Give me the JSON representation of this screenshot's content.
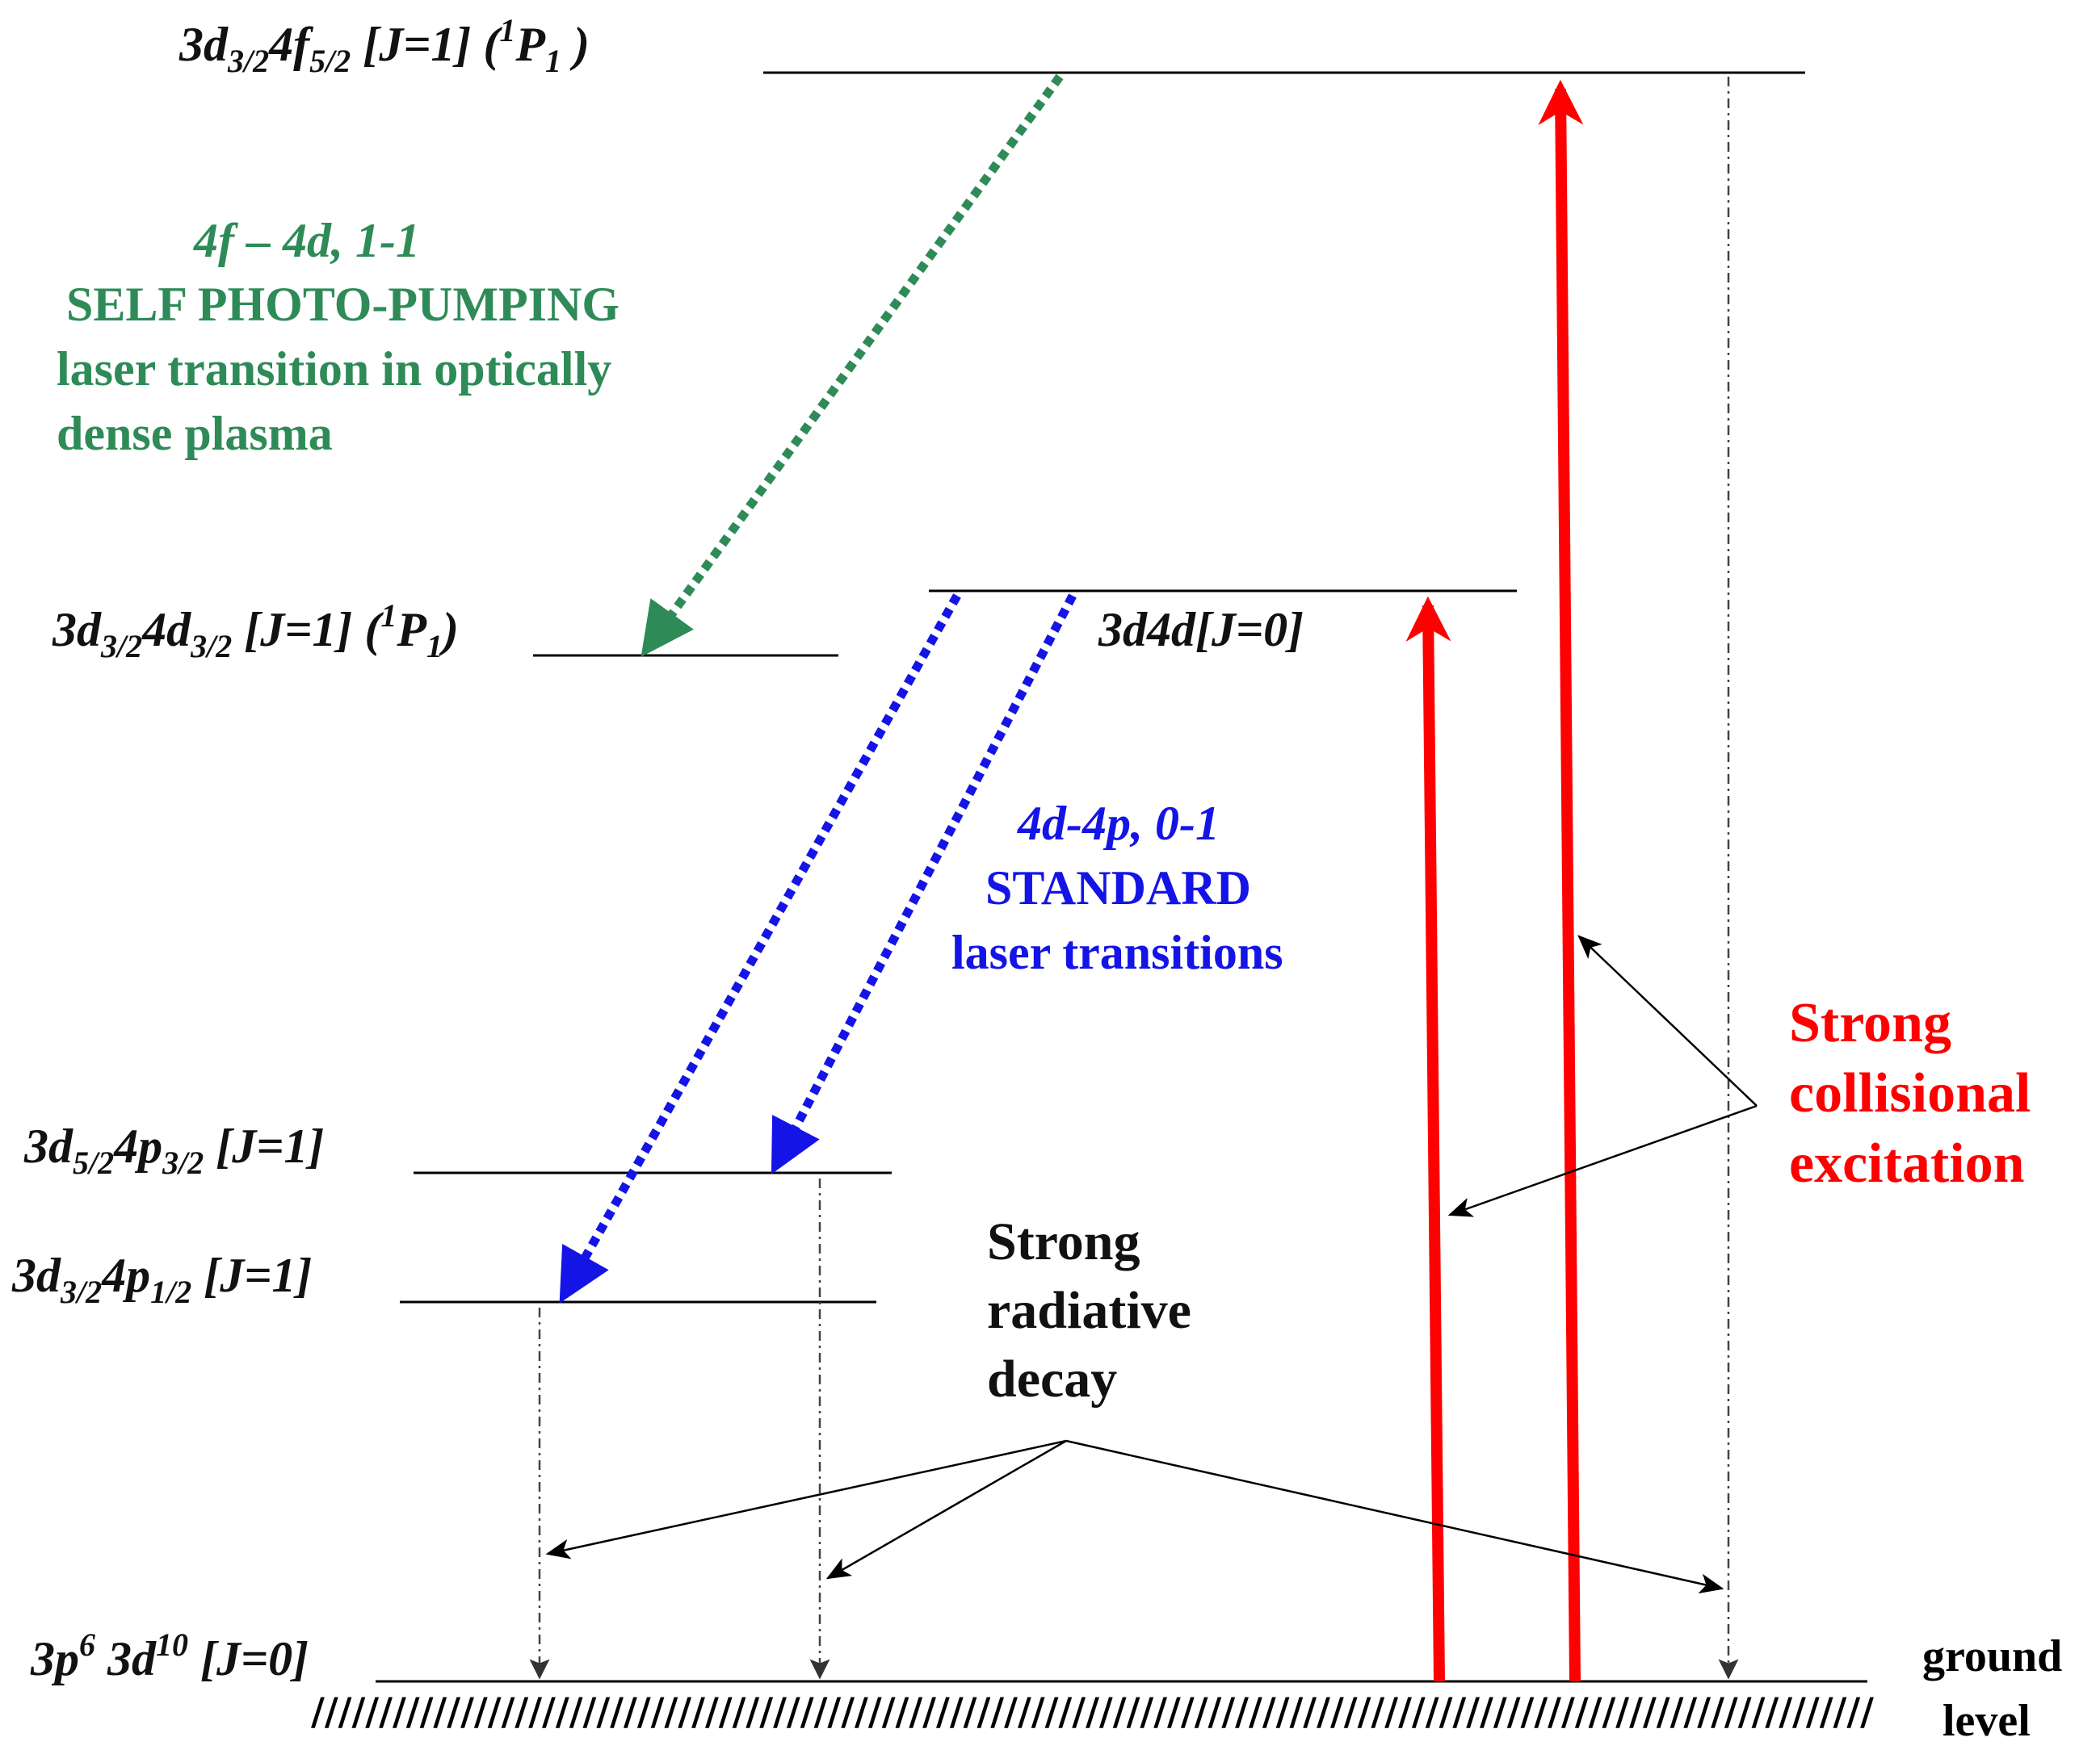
{
  "colors": {
    "level": "#000000",
    "self_photo_pumping": "#2e8b57",
    "standard_transitions": "#1414e6",
    "collisional_excitation": "#ff0000",
    "annotation": "#000000"
  },
  "levels": {
    "l4f": {
      "pre": "3d",
      "sub1": "3/2",
      "mid": "4f",
      "sub2": "5/2",
      "j": " [J=1] (",
      "sup": "1",
      "term": "P",
      "tsub": "1",
      "end": " )"
    },
    "l4d": {
      "pre": "3d",
      "sub1": "3/2",
      "mid": "4d",
      "sub2": "3/2",
      "j": " [J=1]  (",
      "sup": "1",
      "term": "P",
      "tsub": "1",
      "end": ")"
    },
    "l4d0": {
      "text": "3d4d[J=0]"
    },
    "l4p32": {
      "pre": "3d",
      "sub1": "5/2",
      "mid": "4p",
      "sub2": "3/2",
      "j": " [J=1]"
    },
    "l4p12": {
      "pre": "3d",
      "sub1": "3/2",
      "mid": "4p",
      "sub2": "1/2",
      "j": " [J=1]"
    },
    "ground": {
      "pre": "3p",
      "sup1": "6",
      "mid": " 3d",
      "sup2": "10",
      "j": " [J=0]"
    },
    "ground_label": [
      "ground",
      "level"
    ]
  },
  "annotations": {
    "self_pumping": [
      "4f – 4d, 1-1",
      "SELF PHOTO-PUMPING",
      "laser transition in optically",
      "dense plasma"
    ],
    "standard": [
      "4d-4p, 0-1",
      "STANDARD",
      "laser transitions"
    ],
    "collisional": [
      "Strong",
      "collisional",
      "excitation"
    ],
    "radiative": [
      "Strong",
      "radiative",
      "decay"
    ]
  },
  "hatch": "///////////////////////////////////////////////////////////////////////////////////////////////////////////////////"
}
